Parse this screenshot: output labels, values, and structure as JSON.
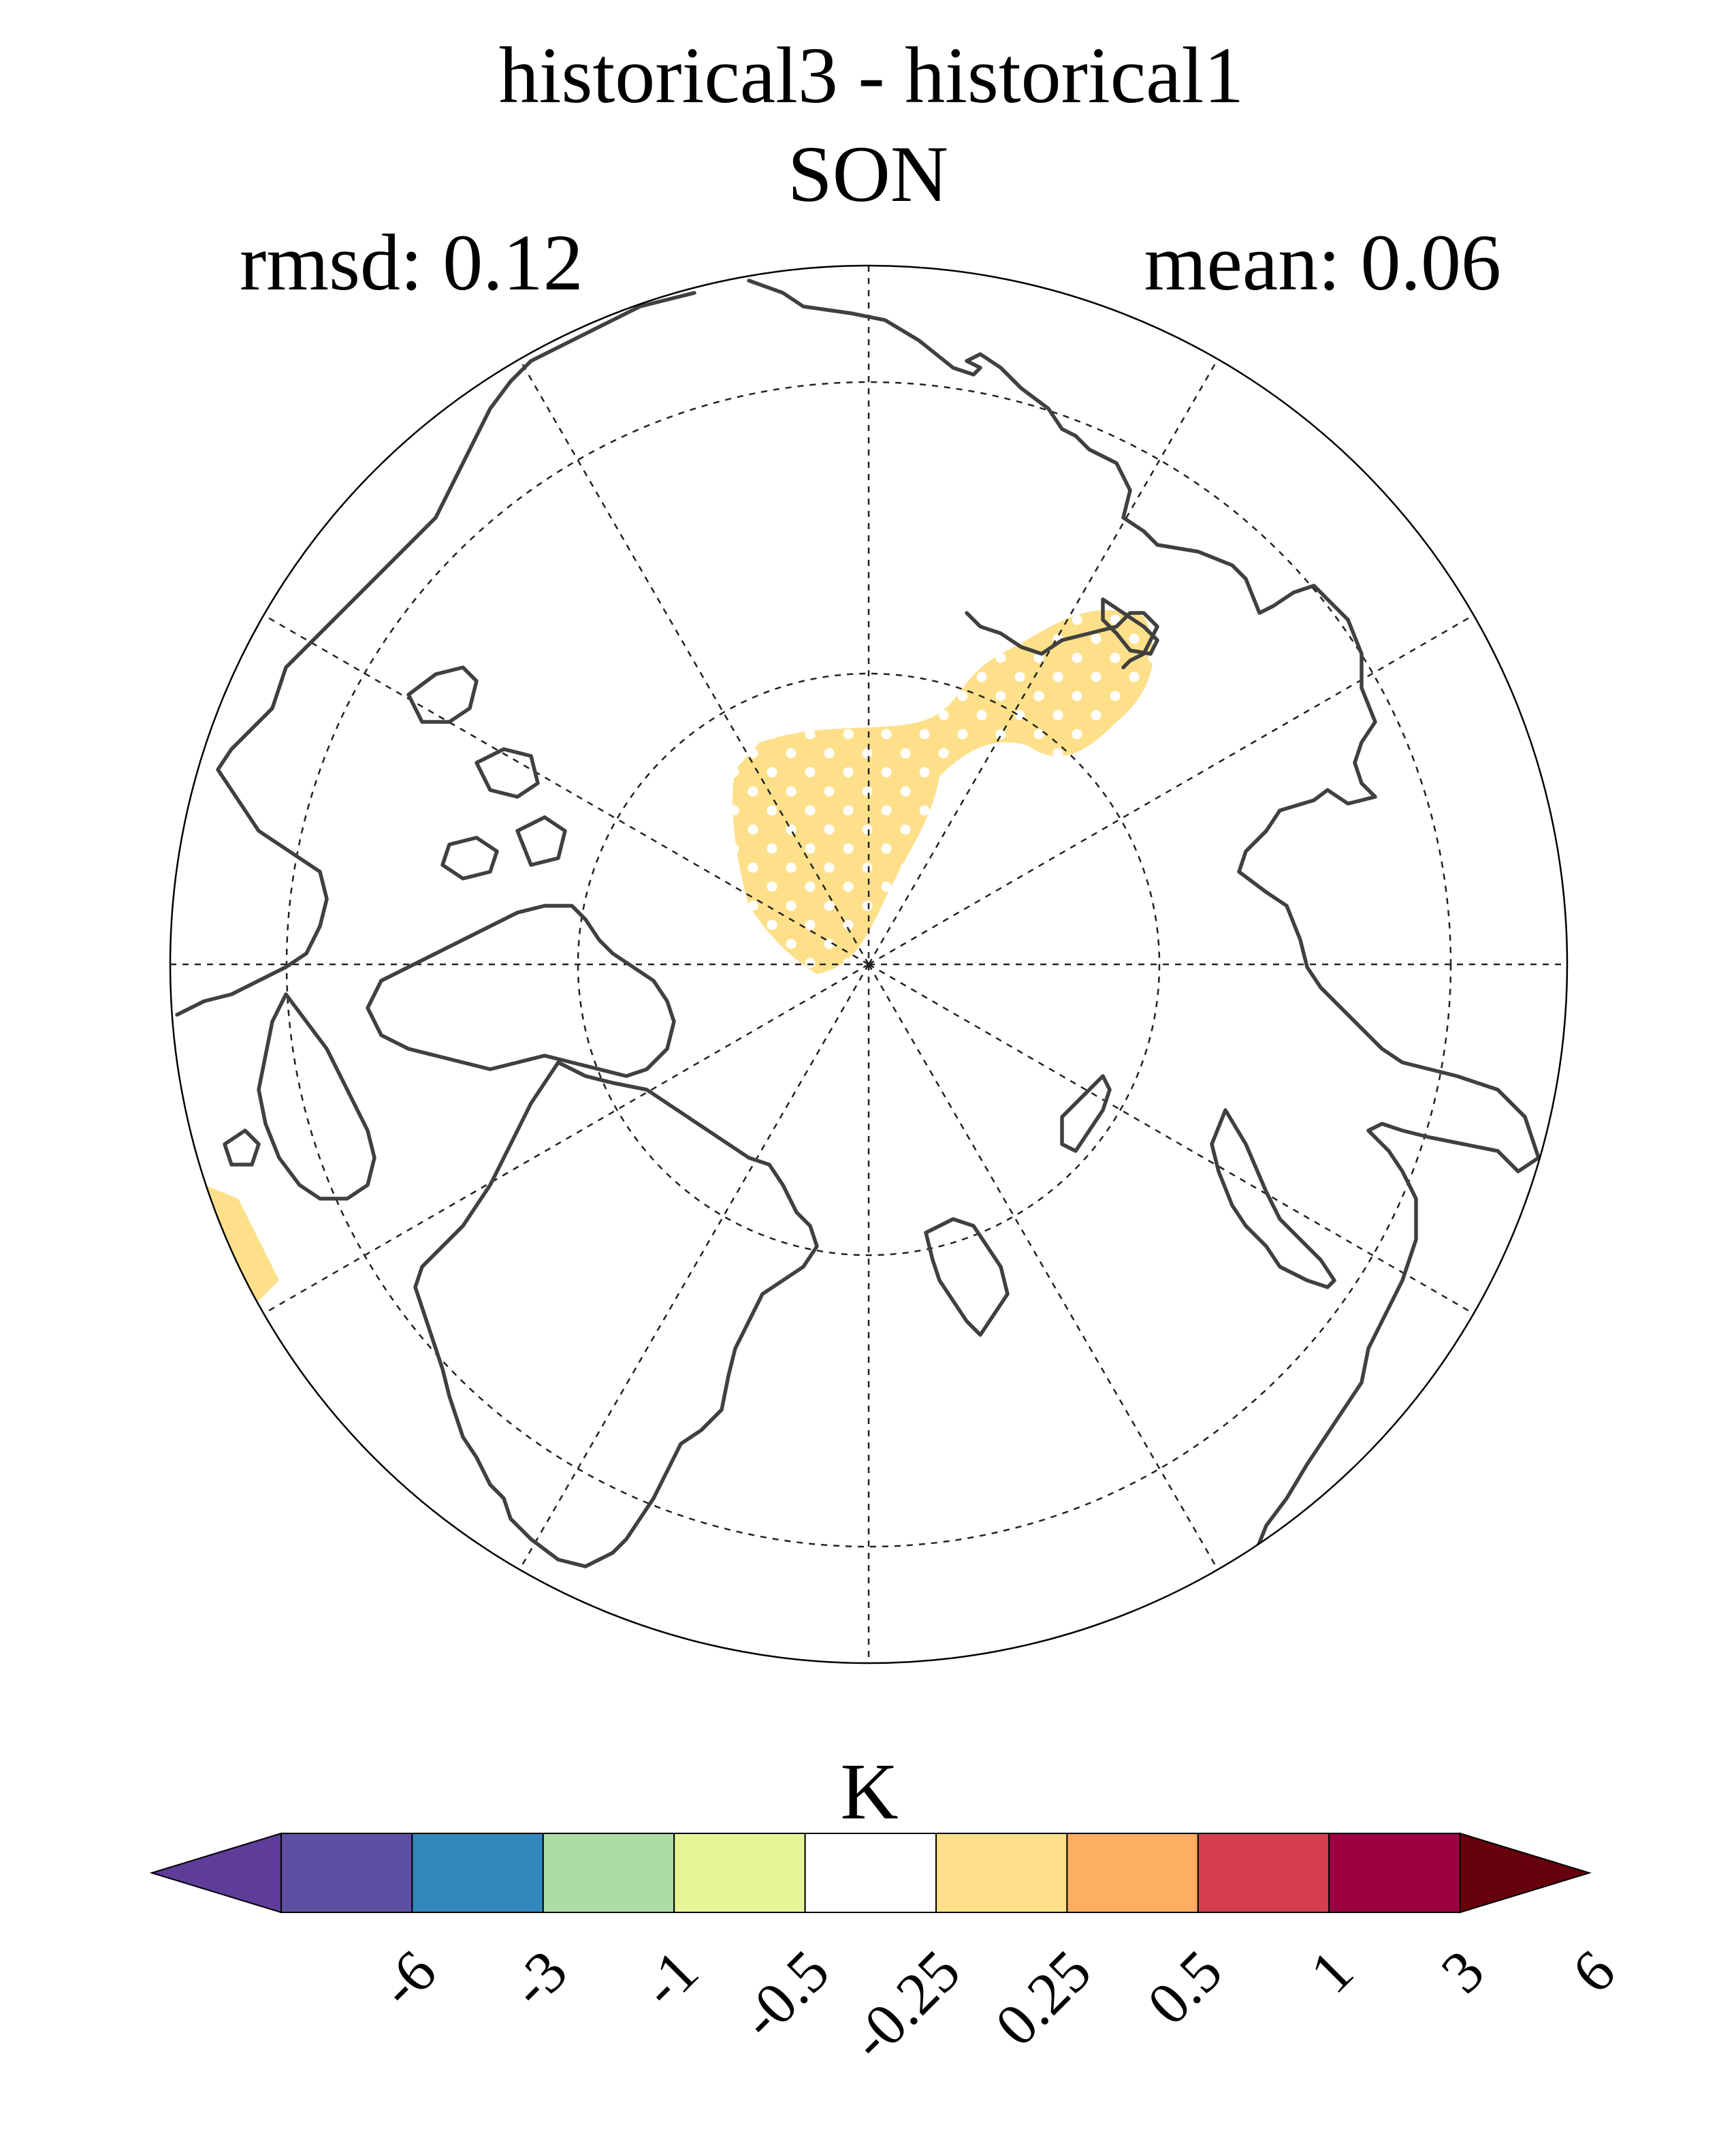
{
  "chart_data": {
    "type": "heatmap",
    "projection": "north-polar-stereographic",
    "title": "historical3 - historical1",
    "subtitle": "SON",
    "stat_left": "rmsd: 0.12",
    "stat_right": "mean: 0.06",
    "colorbar": {
      "units": "K",
      "levels": [
        "-6",
        "-3",
        "-1",
        "-0.5",
        "-0.25",
        "0.25",
        "0.5",
        "1",
        "3",
        "6"
      ],
      "colors": [
        "#5e3c99",
        "#5e4fa2",
        "#3288bd",
        "#abdda4",
        "#e6f598",
        "#ffffff",
        "#fee08b",
        "#fdae61",
        "#d53e4f",
        "#9e0142",
        "#67000d"
      ],
      "extend": "both"
    },
    "regions": [
      {
        "name": "central-arctic-to-kara-sea",
        "bin": "0.25 to 0.5",
        "color": "#fee08b",
        "stippled": true
      },
      {
        "name": "labrador-sea-edge",
        "bin": "0.25 to 0.5",
        "color": "#fee08b",
        "stippled": false
      }
    ]
  }
}
